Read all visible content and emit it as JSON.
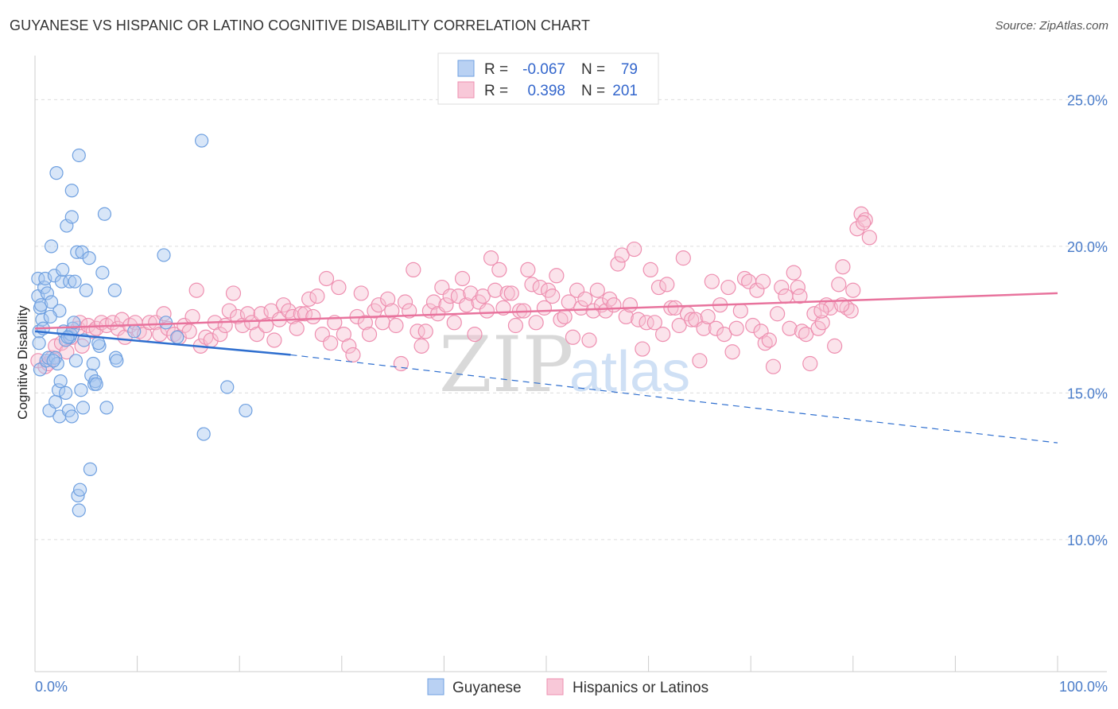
{
  "title": "GUYANESE VS HISPANIC OR LATINO COGNITIVE DISABILITY CORRELATION CHART",
  "source": "Source: ZipAtlas.com",
  "watermark": {
    "zip": "ZIP",
    "atlas": "atlas"
  },
  "colors": {
    "guyanese": "#6fa0e0",
    "guyanese_fill": "#a9c8f0",
    "hispanic": "#ee8fb0",
    "hispanic_fill": "#f6c0d3",
    "guyanese_line": "#2f6fcf",
    "hispanic_line": "#e8739d",
    "grid": "#dddddd",
    "axis_text": "#4a7cc9"
  },
  "legend": {
    "guyanese": {
      "r_label": "R =",
      "r_value": "-0.067",
      "n_label": "N =",
      "n_value": "79"
    },
    "hispanic": {
      "r_label": "R =",
      "r_value": "0.398",
      "n_label": "N =",
      "n_value": "201"
    }
  },
  "chart_data": {
    "type": "scatter",
    "title": "GUYANESE VS HISPANIC OR LATINO COGNITIVE DISABILITY CORRELATION CHART",
    "xlabel": "",
    "ylabel": "Cognitive Disability",
    "xlim": [
      0,
      100
    ],
    "ylim": [
      5.5,
      26.5
    ],
    "x_tick_labels": [
      "0.0%",
      "100.0%"
    ],
    "y_ticks": [
      10,
      15,
      20,
      25
    ],
    "y_tick_labels": [
      "10.0%",
      "15.0%",
      "20.0%",
      "25.0%"
    ],
    "grid": true,
    "legend_position": "top-center and bottom",
    "series": [
      {
        "name": "Guyanese",
        "trend": {
          "x0": 0,
          "y0": 17.1,
          "x1": 25,
          "y1": 16.3,
          "dashed_to_x": 100,
          "dashed_to_y": 13.3
        },
        "points": [
          [
            0.3,
            18.9
          ],
          [
            0.3,
            18.3
          ],
          [
            0.4,
            17.1
          ],
          [
            0.4,
            16.7
          ],
          [
            0.5,
            15.8
          ],
          [
            0.5,
            17.9
          ],
          [
            0.6,
            18.0
          ],
          [
            0.7,
            17.5
          ],
          [
            0.9,
            18.6
          ],
          [
            1.0,
            18.9
          ],
          [
            1.1,
            16.1
          ],
          [
            1.2,
            18.4
          ],
          [
            1.3,
            16.2
          ],
          [
            1.4,
            14.4
          ],
          [
            1.6,
            20.0
          ],
          [
            1.6,
            18.1
          ],
          [
            1.9,
            19.0
          ],
          [
            2.0,
            16.2
          ],
          [
            2.0,
            14.7
          ],
          [
            2.1,
            22.5
          ],
          [
            2.3,
            15.1
          ],
          [
            2.4,
            14.2
          ],
          [
            2.4,
            17.8
          ],
          [
            2.5,
            15.4
          ],
          [
            2.6,
            18.8
          ],
          [
            2.7,
            19.2
          ],
          [
            2.8,
            17.1
          ],
          [
            3.0,
            15.0
          ],
          [
            3.0,
            16.8
          ],
          [
            3.1,
            20.7
          ],
          [
            3.3,
            14.4
          ],
          [
            3.4,
            16.9
          ],
          [
            3.4,
            18.8
          ],
          [
            3.5,
            17.0
          ],
          [
            3.6,
            21.0
          ],
          [
            3.6,
            21.9
          ],
          [
            3.6,
            14.2
          ],
          [
            3.7,
            17.2
          ],
          [
            3.8,
            17.4
          ],
          [
            3.9,
            18.8
          ],
          [
            4.0,
            16.1
          ],
          [
            4.1,
            19.8
          ],
          [
            4.2,
            11.5
          ],
          [
            4.3,
            11.0
          ],
          [
            4.3,
            23.1
          ],
          [
            4.4,
            11.7
          ],
          [
            4.5,
            15.1
          ],
          [
            4.6,
            19.8
          ],
          [
            4.7,
            14.5
          ],
          [
            4.8,
            16.8
          ],
          [
            5.3,
            19.6
          ],
          [
            5.4,
            12.4
          ],
          [
            5.5,
            15.6
          ],
          [
            5.7,
            16.0
          ],
          [
            5.8,
            15.3
          ],
          [
            5.9,
            15.4
          ],
          [
            6.0,
            15.3
          ],
          [
            6.3,
            16.6
          ],
          [
            6.6,
            19.1
          ],
          [
            6.8,
            21.1
          ],
          [
            7.0,
            14.5
          ],
          [
            7.8,
            18.5
          ],
          [
            7.9,
            16.2
          ],
          [
            8.0,
            16.1
          ],
          [
            9.7,
            17.1
          ],
          [
            12.6,
            19.7
          ],
          [
            12.8,
            17.4
          ],
          [
            13.9,
            16.9
          ],
          [
            16.3,
            23.6
          ],
          [
            16.5,
            13.6
          ],
          [
            18.8,
            15.2
          ],
          [
            20.6,
            14.4
          ],
          [
            2.2,
            16.0
          ],
          [
            1.8,
            16.1
          ],
          [
            5.0,
            18.5
          ],
          [
            6.2,
            16.7
          ],
          [
            3.2,
            16.9
          ],
          [
            1.5,
            17.6
          ],
          [
            0.8,
            17.2
          ]
        ]
      },
      {
        "name": "Hispanics or Latinos",
        "trend": {
          "x0": 0,
          "y0": 17.2,
          "x1": 100,
          "y1": 18.4
        },
        "points": [
          [
            0.3,
            16.1
          ],
          [
            1.0,
            15.9
          ],
          [
            1.3,
            16.0
          ],
          [
            1.7,
            16.2
          ],
          [
            2.0,
            16.6
          ],
          [
            2.6,
            16.7
          ],
          [
            3.1,
            16.4
          ],
          [
            3.6,
            16.9
          ],
          [
            4.2,
            17.2
          ],
          [
            4.4,
            17.4
          ],
          [
            4.6,
            16.6
          ],
          [
            5.2,
            17.3
          ],
          [
            5.7,
            17.1
          ],
          [
            6.0,
            17.2
          ],
          [
            6.5,
            17.4
          ],
          [
            7.0,
            17.3
          ],
          [
            7.6,
            17.4
          ],
          [
            8.1,
            17.2
          ],
          [
            8.5,
            17.5
          ],
          [
            8.8,
            16.9
          ],
          [
            9.3,
            17.3
          ],
          [
            9.8,
            17.4
          ],
          [
            10.2,
            17.1
          ],
          [
            10.7,
            17.0
          ],
          [
            11.2,
            17.4
          ],
          [
            11.8,
            17.4
          ],
          [
            12.2,
            17.0
          ],
          [
            12.6,
            17.7
          ],
          [
            13.0,
            17.2
          ],
          [
            13.6,
            17.0
          ],
          [
            14.1,
            16.9
          ],
          [
            14.6,
            17.3
          ],
          [
            15.1,
            17.1
          ],
          [
            15.4,
            17.6
          ],
          [
            15.8,
            18.5
          ],
          [
            16.2,
            16.6
          ],
          [
            16.7,
            16.9
          ],
          [
            17.2,
            16.8
          ],
          [
            17.6,
            17.4
          ],
          [
            18.1,
            17.0
          ],
          [
            18.6,
            17.3
          ],
          [
            19.0,
            17.8
          ],
          [
            19.4,
            18.4
          ],
          [
            19.8,
            17.6
          ],
          [
            20.3,
            17.3
          ],
          [
            20.8,
            17.7
          ],
          [
            21.2,
            17.4
          ],
          [
            21.7,
            17.0
          ],
          [
            22.1,
            17.7
          ],
          [
            22.6,
            17.3
          ],
          [
            23.1,
            17.8
          ],
          [
            23.4,
            16.8
          ],
          [
            23.9,
            17.5
          ],
          [
            24.3,
            18.0
          ],
          [
            24.8,
            17.8
          ],
          [
            25.2,
            17.6
          ],
          [
            25.6,
            17.2
          ],
          [
            26.0,
            17.7
          ],
          [
            26.4,
            17.7
          ],
          [
            26.8,
            18.2
          ],
          [
            27.2,
            17.6
          ],
          [
            27.6,
            18.3
          ],
          [
            28.1,
            17.0
          ],
          [
            28.5,
            18.9
          ],
          [
            28.9,
            16.7
          ],
          [
            29.3,
            17.4
          ],
          [
            29.7,
            18.6
          ],
          [
            30.2,
            17.0
          ],
          [
            30.7,
            16.6
          ],
          [
            31.1,
            16.3
          ],
          [
            31.5,
            17.6
          ],
          [
            31.9,
            18.4
          ],
          [
            32.3,
            17.4
          ],
          [
            32.7,
            17.0
          ],
          [
            33.2,
            17.8
          ],
          [
            33.6,
            18.0
          ],
          [
            34.0,
            17.4
          ],
          [
            34.5,
            18.2
          ],
          [
            34.9,
            17.8
          ],
          [
            35.3,
            17.3
          ],
          [
            35.8,
            16.0
          ],
          [
            36.2,
            18.1
          ],
          [
            36.6,
            17.8
          ],
          [
            37.0,
            19.2
          ],
          [
            37.4,
            17.1
          ],
          [
            37.8,
            16.6
          ],
          [
            38.2,
            17.1
          ],
          [
            38.6,
            17.8
          ],
          [
            39.0,
            18.1
          ],
          [
            39.4,
            17.7
          ],
          [
            39.8,
            18.6
          ],
          [
            40.2,
            18.0
          ],
          [
            40.6,
            18.3
          ],
          [
            41.0,
            17.4
          ],
          [
            41.4,
            18.3
          ],
          [
            41.8,
            18.9
          ],
          [
            42.2,
            18.0
          ],
          [
            42.6,
            18.4
          ],
          [
            43.0,
            17.0
          ],
          [
            43.4,
            18.1
          ],
          [
            43.8,
            18.3
          ],
          [
            44.2,
            17.8
          ],
          [
            44.6,
            19.6
          ],
          [
            45.0,
            18.5
          ],
          [
            45.4,
            19.2
          ],
          [
            45.8,
            17.9
          ],
          [
            46.2,
            18.4
          ],
          [
            46.6,
            18.4
          ],
          [
            47.0,
            17.3
          ],
          [
            47.4,
            17.8
          ],
          [
            47.8,
            17.8
          ],
          [
            48.2,
            19.2
          ],
          [
            48.6,
            18.7
          ],
          [
            49.0,
            17.4
          ],
          [
            49.4,
            18.6
          ],
          [
            49.8,
            17.9
          ],
          [
            50.2,
            18.5
          ],
          [
            50.6,
            18.3
          ],
          [
            51.0,
            19.0
          ],
          [
            51.4,
            17.5
          ],
          [
            51.8,
            17.6
          ],
          [
            52.2,
            18.1
          ],
          [
            52.6,
            16.9
          ],
          [
            53.0,
            18.5
          ],
          [
            53.4,
            17.9
          ],
          [
            53.8,
            18.2
          ],
          [
            54.2,
            16.8
          ],
          [
            54.6,
            17.8
          ],
          [
            55.0,
            18.5
          ],
          [
            55.4,
            18.0
          ],
          [
            55.8,
            17.8
          ],
          [
            56.2,
            18.2
          ],
          [
            56.6,
            18.0
          ],
          [
            57.0,
            19.4
          ],
          [
            57.4,
            19.7
          ],
          [
            57.8,
            17.6
          ],
          [
            58.2,
            18.0
          ],
          [
            58.6,
            19.9
          ],
          [
            59.0,
            17.5
          ],
          [
            59.4,
            16.5
          ],
          [
            59.8,
            17.4
          ],
          [
            60.2,
            19.2
          ],
          [
            60.6,
            17.4
          ],
          [
            61.0,
            18.6
          ],
          [
            61.4,
            17.0
          ],
          [
            61.8,
            18.7
          ],
          [
            62.2,
            17.9
          ],
          [
            62.6,
            17.9
          ],
          [
            63.0,
            17.3
          ],
          [
            63.4,
            19.6
          ],
          [
            63.8,
            17.7
          ],
          [
            64.2,
            17.5
          ],
          [
            64.6,
            17.5
          ],
          [
            65.0,
            16.1
          ],
          [
            65.4,
            17.2
          ],
          [
            65.8,
            17.6
          ],
          [
            66.2,
            18.8
          ],
          [
            66.6,
            17.2
          ],
          [
            67.0,
            18.0
          ],
          [
            67.4,
            17.0
          ],
          [
            67.8,
            18.6
          ],
          [
            68.2,
            16.4
          ],
          [
            68.6,
            17.2
          ],
          [
            69.0,
            17.8
          ],
          [
            69.4,
            18.9
          ],
          [
            69.8,
            18.8
          ],
          [
            70.2,
            17.3
          ],
          [
            70.6,
            18.5
          ],
          [
            71.0,
            17.1
          ],
          [
            71.4,
            16.7
          ],
          [
            71.8,
            16.8
          ],
          [
            72.2,
            15.9
          ],
          [
            72.6,
            17.7
          ],
          [
            73.0,
            18.6
          ],
          [
            73.4,
            18.3
          ],
          [
            73.8,
            17.2
          ],
          [
            74.2,
            19.1
          ],
          [
            74.6,
            18.6
          ],
          [
            75.0,
            17.1
          ],
          [
            75.4,
            17.0
          ],
          [
            75.8,
            16.0
          ],
          [
            76.2,
            17.7
          ],
          [
            76.6,
            17.2
          ],
          [
            77.0,
            17.4
          ],
          [
            77.4,
            18.0
          ],
          [
            77.8,
            17.9
          ],
          [
            78.2,
            16.6
          ],
          [
            78.6,
            18.7
          ],
          [
            79.0,
            19.3
          ],
          [
            79.4,
            17.9
          ],
          [
            80.4,
            20.6
          ],
          [
            80.8,
            21.1
          ],
          [
            81.2,
            20.9
          ],
          [
            81.6,
            20.3
          ],
          [
            81.0,
            20.8
          ],
          [
            80.0,
            18.5
          ],
          [
            79.8,
            17.8
          ],
          [
            78.9,
            18.0
          ],
          [
            76.9,
            17.8
          ],
          [
            74.8,
            18.3
          ],
          [
            71.2,
            18.8
          ]
        ]
      }
    ]
  },
  "bottom_legend": [
    {
      "label": "Guyanese"
    },
    {
      "label": "Hispanics or Latinos"
    }
  ]
}
